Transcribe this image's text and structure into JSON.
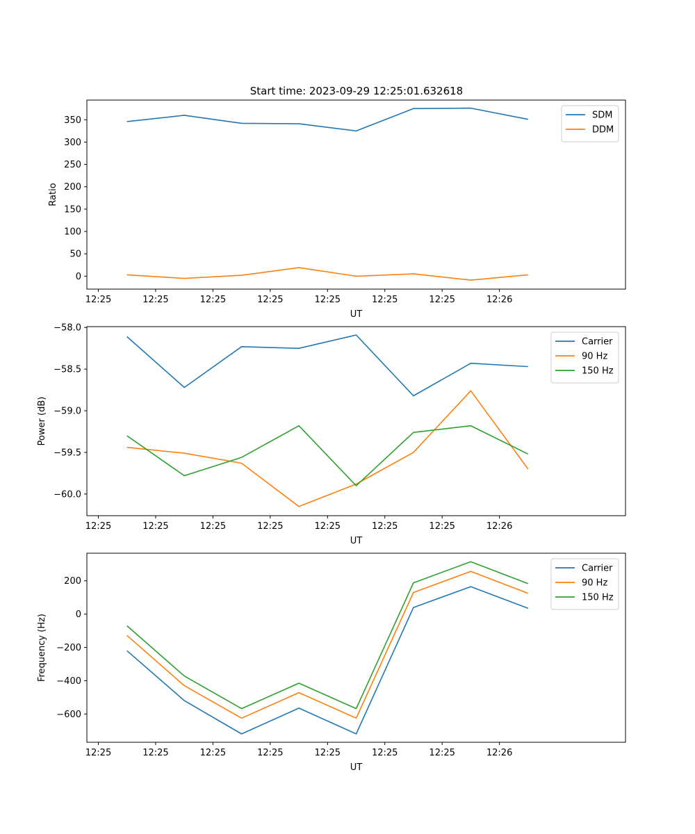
{
  "figure_title": "Start time: 2023-09-29 12:25:01.632618",
  "chart_data": [
    {
      "type": "line",
      "title": "Start time: 2023-09-29 12:25:01.632618",
      "xlabel": "UT",
      "ylabel": "Ratio",
      "xticklabels": [
        "12:25",
        "12:25",
        "12:25",
        "12:25",
        "12:25",
        "12:25",
        "12:25",
        "12:26"
      ],
      "x": [
        0.5,
        1.5,
        2.5,
        3.5,
        4.5,
        5.5,
        6.5,
        7.5
      ],
      "xlim": [
        -0.2,
        9.2
      ],
      "ylim": [
        -29,
        394
      ],
      "yticks": [
        0,
        50,
        100,
        150,
        200,
        250,
        300,
        350
      ],
      "legend": "top-right",
      "series": [
        {
          "name": "SDM",
          "color": "#1f77b4",
          "values": [
            346,
            360,
            342,
            341,
            325,
            375,
            376,
            351
          ]
        },
        {
          "name": "DDM",
          "color": "#ff7f0e",
          "values": [
            3,
            -5,
            2,
            19,
            0,
            5,
            -9,
            3
          ]
        }
      ]
    },
    {
      "type": "line",
      "title": "",
      "xlabel": "UT",
      "ylabel": "Power (dB)",
      "xticklabels": [
        "12:25",
        "12:25",
        "12:25",
        "12:25",
        "12:25",
        "12:25",
        "12:25",
        "12:26"
      ],
      "x": [
        0.5,
        1.5,
        2.5,
        3.5,
        4.5,
        5.5,
        6.5,
        7.5
      ],
      "xlim": [
        -0.2,
        9.2
      ],
      "ylim": [
        -60.26,
        -57.99
      ],
      "yticks": [
        -60.0,
        -59.5,
        -59.0,
        -58.5,
        -58.0
      ],
      "yticklabels": [
        "−60.0",
        "−59.5",
        "−59.0",
        "−58.5",
        "−58.0"
      ],
      "legend": "top-right",
      "series": [
        {
          "name": "Carrier",
          "color": "#1f77b4",
          "values": [
            -58.11,
            -58.72,
            -58.23,
            -58.25,
            -58.09,
            -58.82,
            -58.43,
            -58.47
          ]
        },
        {
          "name": "90 Hz",
          "color": "#ff7f0e",
          "values": [
            -59.44,
            -59.51,
            -59.63,
            -60.15,
            -59.88,
            -59.5,
            -58.76,
            -59.7
          ]
        },
        {
          "name": "150 Hz",
          "color": "#2ca02c",
          "values": [
            -59.3,
            -59.78,
            -59.56,
            -59.18,
            -59.9,
            -59.26,
            -59.18,
            -59.52
          ]
        }
      ]
    },
    {
      "type": "line",
      "title": "",
      "xlabel": "UT",
      "ylabel": "Frequency (Hz)",
      "xticklabels": [
        "12:25",
        "12:25",
        "12:25",
        "12:25",
        "12:25",
        "12:25",
        "12:25",
        "12:26"
      ],
      "x": [
        0.5,
        1.5,
        2.5,
        3.5,
        4.5,
        5.5,
        6.5,
        7.5
      ],
      "xlim": [
        -0.2,
        9.2
      ],
      "ylim": [
        -770,
        366
      ],
      "yticks": [
        -600,
        -400,
        -200,
        0,
        200
      ],
      "yticklabels": [
        "−600",
        "−400",
        "−200",
        "0",
        "200"
      ],
      "legend": "top-right",
      "series": [
        {
          "name": "Carrier",
          "color": "#1f77b4",
          "values": [
            -220,
            -520,
            -720,
            -565,
            -720,
            40,
            165,
            35
          ]
        },
        {
          "name": "90 Hz",
          "color": "#ff7f0e",
          "values": [
            -128,
            -430,
            -625,
            -472,
            -625,
            130,
            257,
            125
          ]
        },
        {
          "name": "150 Hz",
          "color": "#2ca02c",
          "values": [
            -70,
            -372,
            -568,
            -415,
            -568,
            188,
            315,
            183
          ]
        }
      ]
    }
  ]
}
